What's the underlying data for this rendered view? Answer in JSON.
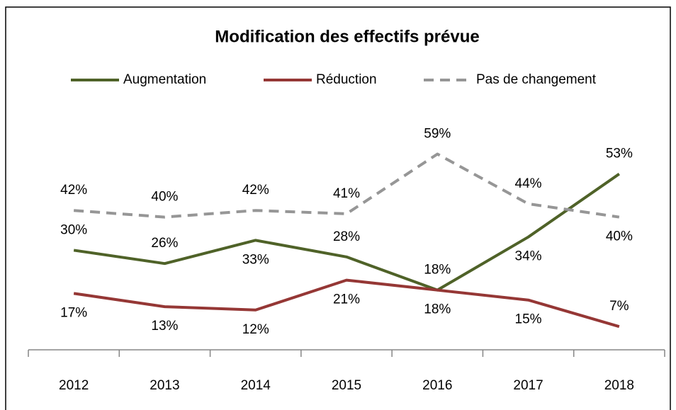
{
  "chart_data": {
    "type": "line",
    "title": "Modification des effectifs prévue",
    "categories": [
      "2012",
      "2013",
      "2014",
      "2015",
      "2016",
      "2017",
      "2018"
    ],
    "series": [
      {
        "name": "Augmentation",
        "color": "#4f6228",
        "values": [
          30,
          26,
          33,
          28,
          18,
          34,
          53
        ],
        "value_labels": [
          "30%",
          "26%",
          "33%",
          "28%",
          "18%",
          "34%",
          "53%"
        ]
      },
      {
        "name": "Réduction",
        "color": "#953735",
        "values": [
          17,
          13,
          12,
          21,
          18,
          15,
          7
        ],
        "value_labels": [
          "17%",
          "13%",
          "12%",
          "21%",
          "18%",
          "15%",
          "7%"
        ]
      },
      {
        "name": "Pas de changement",
        "color": "#969696",
        "dashed": true,
        "values": [
          42,
          40,
          42,
          41,
          59,
          44,
          40
        ],
        "value_labels": [
          "42%",
          "40%",
          "42%",
          "41%",
          "59%",
          "44%",
          "40%"
        ]
      }
    ],
    "ylim": [
      0,
      70
    ],
    "legend": "top"
  }
}
